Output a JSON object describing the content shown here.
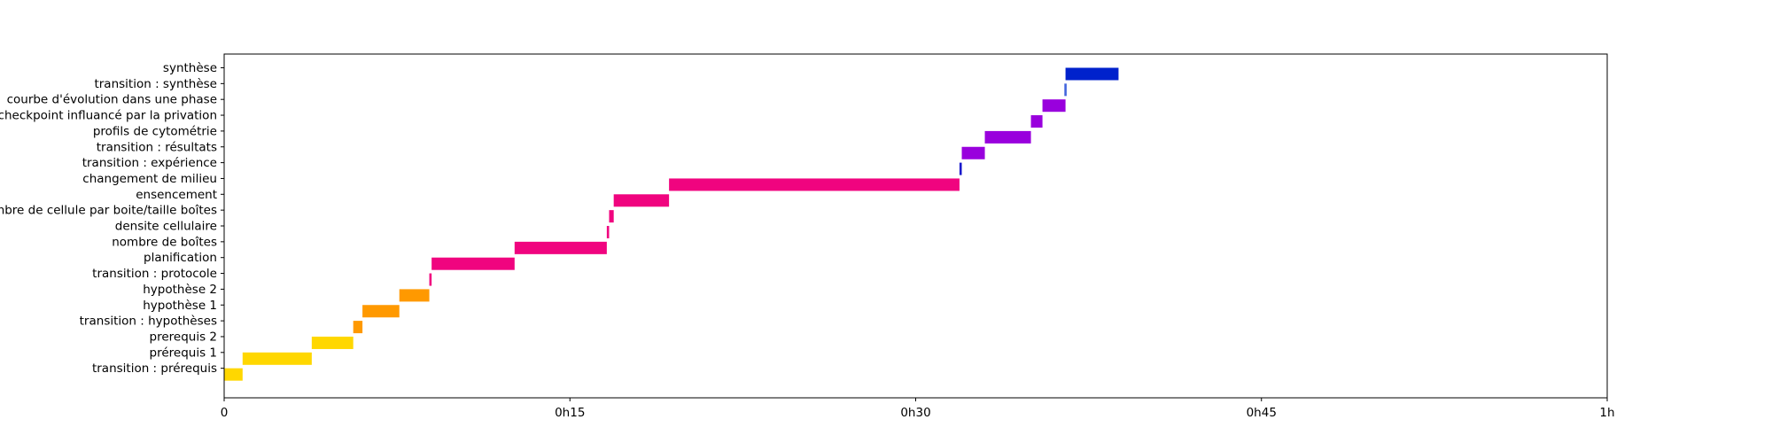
{
  "chart_data": {
    "type": "bar",
    "orientation": "horizontal-gantt",
    "title": "",
    "xlabel": "",
    "ylabel": "",
    "x_unit": "minutes",
    "xlim": [
      0,
      60
    ],
    "x_ticks": [
      {
        "value": 0,
        "label": "0"
      },
      {
        "value": 15,
        "label": "0h15"
      },
      {
        "value": 30,
        "label": "0h30"
      },
      {
        "value": 45,
        "label": "0h45"
      },
      {
        "value": 60,
        "label": "1h"
      }
    ],
    "grid": false,
    "legend": "none",
    "tasks": [
      {
        "label": "transition : prérequis",
        "start": 0.0,
        "end": 0.8,
        "color": "#ffd700"
      },
      {
        "label": "prérequis 1",
        "start": 0.8,
        "end": 3.8,
        "color": "#ffd700"
      },
      {
        "label": "prerequis 2",
        "start": 3.8,
        "end": 5.6,
        "color": "#ffd700"
      },
      {
        "label": "transition : hypothèses",
        "start": 5.6,
        "end": 6.0,
        "color": "#ff9900"
      },
      {
        "label": "hypothèse 1",
        "start": 6.0,
        "end": 7.6,
        "color": "#ff9900"
      },
      {
        "label": "hypothèse 2",
        "start": 7.6,
        "end": 8.9,
        "color": "#ff9900"
      },
      {
        "label": "transition : protocole",
        "start": 8.9,
        "end": 9.0,
        "color": "#f0047f"
      },
      {
        "label": "planification",
        "start": 9.0,
        "end": 12.6,
        "color": "#f0047f"
      },
      {
        "label": "nombre de boîtes",
        "start": 12.6,
        "end": 16.6,
        "color": "#f0047f"
      },
      {
        "label": "densite cellulaire",
        "start": 16.6,
        "end": 16.7,
        "color": "#f0047f"
      },
      {
        "label": "nombre de cellule par boite/taille boîtes",
        "start": 16.7,
        "end": 16.9,
        "color": "#f0047f"
      },
      {
        "label": "ensencement",
        "start": 16.9,
        "end": 19.3,
        "color": "#f0047f"
      },
      {
        "label": "changement de milieu",
        "start": 19.3,
        "end": 31.9,
        "color": "#f0047f"
      },
      {
        "label": "transition : expérience",
        "start": 31.9,
        "end": 32.0,
        "color": "#1a1acc"
      },
      {
        "label": "transition : résultats",
        "start": 32.0,
        "end": 33.0,
        "color": "#9900dd"
      },
      {
        "label": "profils de cytométrie",
        "start": 33.0,
        "end": 35.0,
        "color": "#9900dd"
      },
      {
        "label": "checkpoint influancé par la privation",
        "start": 35.0,
        "end": 35.5,
        "color": "#9900dd"
      },
      {
        "label": "courbe d'évolution dans une phase",
        "start": 35.5,
        "end": 36.5,
        "color": "#9900dd"
      },
      {
        "label": "transition : synthèse",
        "start": 36.45,
        "end": 36.55,
        "color": "#4466dd"
      },
      {
        "label": "synthèse",
        "start": 36.5,
        "end": 38.8,
        "color": "#0022cc"
      }
    ]
  }
}
